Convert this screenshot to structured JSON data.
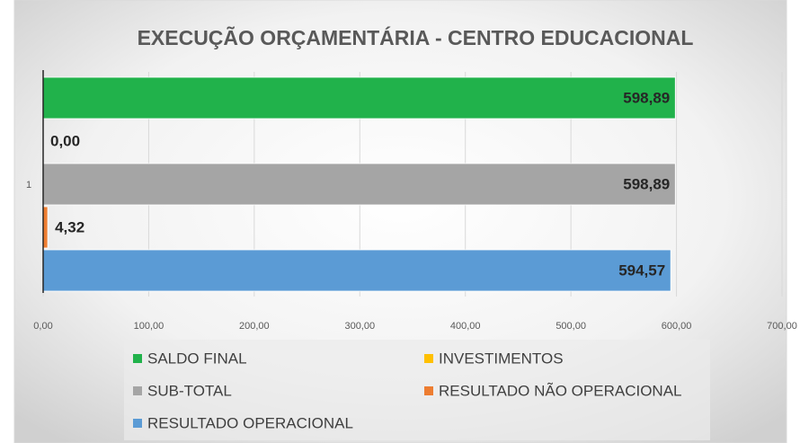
{
  "chart_data": {
    "type": "hbar",
    "title": "EXECUÇÃO ORÇAMENTÁRIA - CENTRO EDUCACIONAL",
    "categories": [
      "1"
    ],
    "series": [
      {
        "name": "SALDO FINAL",
        "color": "#21b24b",
        "values": [
          598.89
        ],
        "value_labels": [
          "598,89"
        ]
      },
      {
        "name": "INVESTIMENTOS",
        "color": "#ffc000",
        "values": [
          0
        ],
        "value_labels": [
          "0,00"
        ]
      },
      {
        "name": "SUB-TOTAL",
        "color": "#a5a5a5",
        "values": [
          598.89
        ],
        "value_labels": [
          "598,89"
        ]
      },
      {
        "name": "RESULTADO NÃO OPERACIONAL",
        "color": "#ed7d31",
        "values": [
          4.32
        ],
        "value_labels": [
          "4,32"
        ]
      },
      {
        "name": "RESULTADO OPERACIONAL",
        "color": "#5b9bd5",
        "values": [
          594.57
        ],
        "value_labels": [
          "594,57"
        ]
      }
    ],
    "xlim": [
      0,
      700
    ],
    "xticks": [
      {
        "value": 0,
        "label": "0,00"
      },
      {
        "value": 100,
        "label": "100,00"
      },
      {
        "value": 200,
        "label": "200,00"
      },
      {
        "value": 300,
        "label": "300,00"
      },
      {
        "value": 400,
        "label": "400,00"
      },
      {
        "value": 500,
        "label": "500,00"
      },
      {
        "value": 600,
        "label": "600,00"
      },
      {
        "value": 700,
        "label": "700,00"
      }
    ],
    "grid": true,
    "legend": "bottom"
  }
}
